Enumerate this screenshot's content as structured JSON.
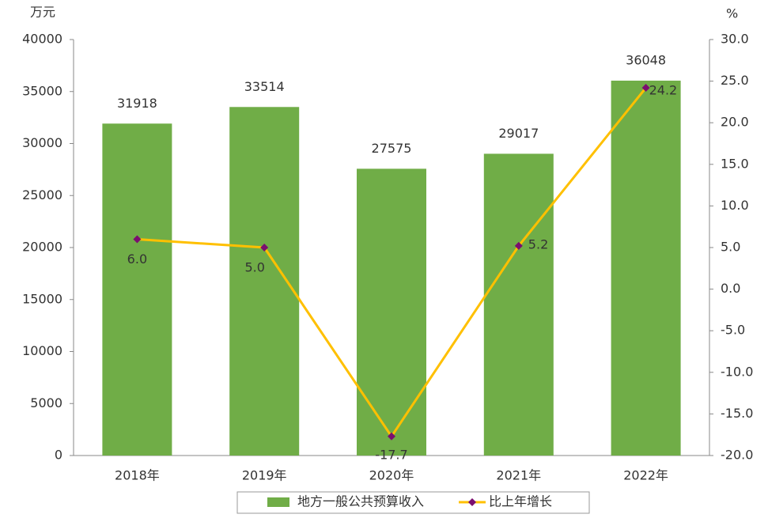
{
  "chart_data": {
    "type": "bar",
    "y_label": "万元",
    "y2_label": "%",
    "categories": [
      "2018年",
      "2019年",
      "2020年",
      "2021年",
      "2022年"
    ],
    "series": [
      {
        "name": "地方一般公共预算收入",
        "color": "#70ad47",
        "values": [
          31918,
          33514,
          27575,
          29017,
          36048
        ]
      },
      {
        "name": "比上年增长",
        "type": "line",
        "axis": "y2",
        "color": "#ffc000",
        "marker_color": "#7b0f6f",
        "values": [
          6.0,
          5.0,
          -17.7,
          5.2,
          24.2
        ],
        "value_labels": [
          "6.0",
          "5.0",
          "-17.7",
          "5.2",
          "24.2"
        ]
      }
    ],
    "ylim": [
      0,
      40000
    ],
    "yticks": [
      0,
      5000,
      10000,
      15000,
      20000,
      25000,
      30000,
      35000,
      40000
    ],
    "y2lim": [
      -20,
      30
    ],
    "y2ticks": [
      {
        "value": -20,
        "label": "-20.0"
      },
      {
        "value": -15,
        "label": "-15.0"
      },
      {
        "value": -10,
        "label": "-10.0"
      },
      {
        "value": -5,
        "label": "-5.0"
      },
      {
        "value": 0,
        "label": "0.0"
      },
      {
        "value": 5,
        "label": "5.0"
      },
      {
        "value": 10,
        "label": "10.0"
      },
      {
        "value": 15,
        "label": "15.0"
      },
      {
        "value": 20,
        "label": "20.0"
      },
      {
        "value": 25,
        "label": "25.0"
      },
      {
        "value": 30,
        "label": "30.0"
      }
    ],
    "legend": "bottom"
  }
}
